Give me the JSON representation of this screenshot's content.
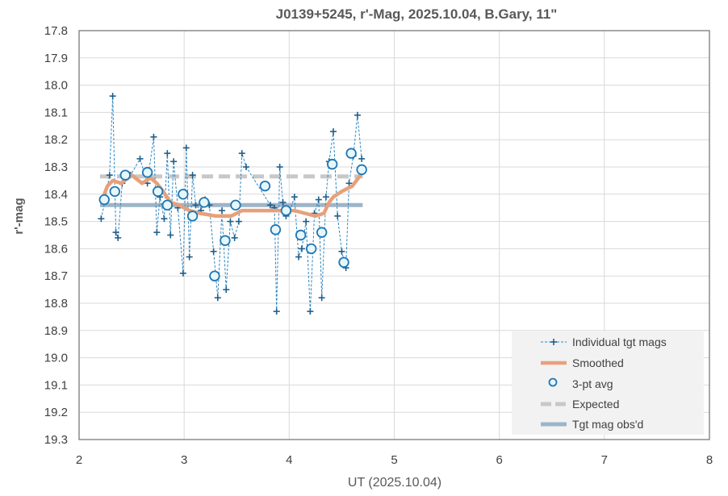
{
  "chart_data": {
    "type": "scatter",
    "title": "J0139+5245, r'-Mag, 2025.10.04, B.Gary, 11\"",
    "xlabel": "UT (2025.10.04)",
    "ylabel": "r'-mag",
    "xlim": [
      2,
      8
    ],
    "ylim": [
      17.8,
      19.3
    ],
    "y_inverted": true,
    "x_ticks": [
      "2",
      "3",
      "4",
      "5",
      "6",
      "7",
      "8"
    ],
    "y_ticks": [
      "17.8",
      "17.9",
      "18.0",
      "18.1",
      "18.2",
      "18.3",
      "18.4",
      "18.5",
      "18.6",
      "18.7",
      "18.8",
      "18.9",
      "19.0",
      "19.1",
      "19.2",
      "19.3"
    ],
    "grid": true,
    "legend_position": "bottom-right",
    "series": [
      {
        "name": "Individual tgt mags",
        "style": "dashed-line-plus",
        "color": "#2E86C1",
        "x": [
          2.21,
          2.25,
          2.29,
          2.32,
          2.35,
          2.37,
          2.41,
          2.49,
          2.58,
          2.65,
          2.71,
          2.74,
          2.77,
          2.81,
          2.84,
          2.87,
          2.9,
          2.94,
          2.99,
          3.02,
          3.05,
          3.08,
          3.11,
          3.16,
          3.2,
          3.24,
          3.28,
          3.32,
          3.36,
          3.4,
          3.44,
          3.48,
          3.52,
          3.55,
          3.59,
          3.82,
          3.86,
          3.88,
          3.91,
          3.94,
          3.97,
          4.01,
          4.05,
          4.09,
          4.12,
          4.16,
          4.2,
          4.24,
          4.28,
          4.31,
          4.35,
          4.38,
          4.42,
          4.46,
          4.5,
          4.54,
          4.57,
          4.61,
          4.65,
          4.69
        ],
        "y": [
          18.49,
          18.42,
          18.33,
          18.04,
          18.54,
          18.56,
          18.36,
          18.33,
          18.27,
          18.36,
          18.19,
          18.54,
          18.41,
          18.49,
          18.25,
          18.55,
          18.28,
          18.45,
          18.69,
          18.23,
          18.63,
          18.33,
          18.44,
          18.46,
          18.42,
          18.44,
          18.61,
          18.78,
          18.46,
          18.75,
          18.5,
          18.56,
          18.5,
          18.25,
          18.3,
          18.44,
          18.45,
          18.83,
          18.3,
          18.43,
          18.48,
          18.46,
          18.41,
          18.63,
          18.6,
          18.5,
          18.83,
          18.47,
          18.42,
          18.78,
          18.41,
          18.28,
          18.17,
          18.48,
          18.61,
          18.67,
          18.36,
          18.26,
          18.11,
          18.27
        ]
      },
      {
        "name": "Smoothed",
        "style": "thick-line",
        "color": "#E8A07A",
        "x": [
          2.22,
          2.27,
          2.32,
          2.4,
          2.5,
          2.6,
          2.68,
          2.74,
          2.8,
          2.87,
          2.95,
          3.05,
          3.15,
          3.3,
          3.45,
          3.55,
          3.7,
          3.9,
          4.05,
          4.15,
          4.25,
          4.33,
          4.38,
          4.42,
          4.5,
          4.6,
          4.68
        ],
        "y": [
          18.42,
          18.37,
          18.35,
          18.36,
          18.33,
          18.36,
          18.34,
          18.36,
          18.39,
          18.43,
          18.44,
          18.46,
          18.47,
          18.48,
          18.48,
          18.46,
          18.46,
          18.46,
          18.46,
          18.47,
          18.48,
          18.47,
          18.43,
          18.41,
          18.39,
          18.37,
          18.33
        ]
      },
      {
        "name": "3-pt avg",
        "style": "open-circle",
        "color": "#1F77B4",
        "x": [
          2.24,
          2.34,
          2.44,
          2.65,
          2.75,
          2.84,
          2.99,
          3.08,
          3.19,
          3.29,
          3.39,
          3.49,
          3.77,
          3.87,
          3.97,
          4.11,
          4.21,
          4.31,
          4.41,
          4.52,
          4.59,
          4.69
        ],
        "y": [
          18.42,
          18.39,
          18.33,
          18.32,
          18.39,
          18.44,
          18.4,
          18.48,
          18.43,
          18.7,
          18.57,
          18.44,
          18.37,
          18.53,
          18.46,
          18.55,
          18.6,
          18.54,
          18.29,
          18.65,
          18.25,
          18.31
        ]
      },
      {
        "name": "Expected",
        "style": "thick-dashed-line",
        "color": "#C8C8C8",
        "x": [
          2.2,
          4.7
        ],
        "y": [
          18.335,
          18.335
        ]
      },
      {
        "name": "Tgt mag obs'd",
        "style": "thick-line",
        "color": "#9DB5C7",
        "x": [
          2.2,
          4.7
        ],
        "y": [
          18.44,
          18.44
        ]
      }
    ]
  }
}
